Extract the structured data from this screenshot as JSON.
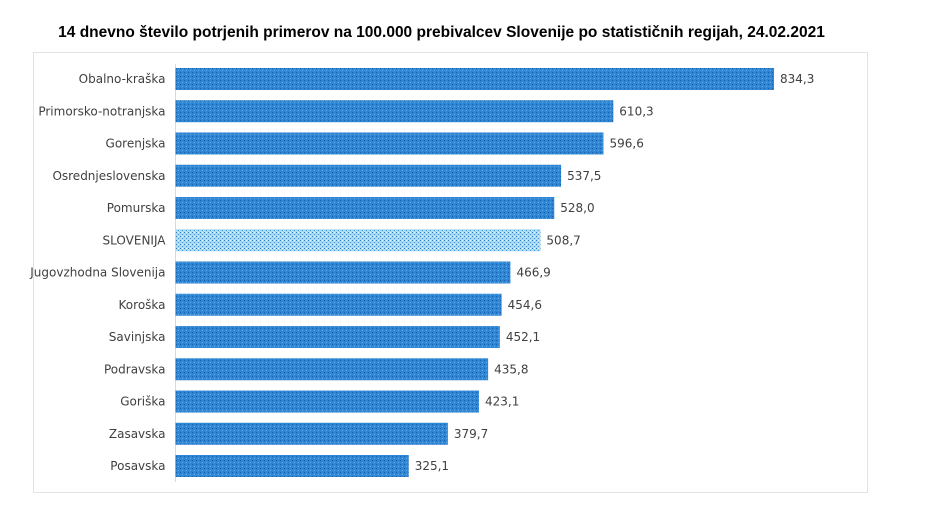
{
  "chart_data": {
    "type": "bar",
    "orientation": "horizontal",
    "title": "14 dnevno število potrjenih primerov na 100.000 prebivalcev Slovenije po statističnih regijah, 24.02.2021",
    "categories": [
      "Obalno-kraška",
      "Primorsko-notranjska",
      "Gorenjska",
      "Osrednjeslovenska",
      "Pomurska",
      "SLOVENIJA",
      "Jugovzhodna Slovenija",
      "Koroška",
      "Savinjska",
      "Podravska",
      "Goriška",
      "Zasavska",
      "Posavska"
    ],
    "values": [
      834.3,
      610.3,
      596.6,
      537.5,
      528.0,
      508.7,
      466.9,
      454.6,
      452.1,
      435.8,
      423.1,
      379.7,
      325.1
    ],
    "labels": [
      "834,3",
      "610,3",
      "596,6",
      "537,5",
      "528,0",
      "508,7",
      "466,9",
      "454,6",
      "452,1",
      "435,8",
      "423,1",
      "379,7",
      "325,1"
    ],
    "highlight": "SLOVENIJA",
    "colors": {
      "bar": "#2e86d6",
      "highlight": "#7fc4ea"
    },
    "xlim": [
      0,
      834.3
    ],
    "grid": false,
    "legend": "none"
  }
}
